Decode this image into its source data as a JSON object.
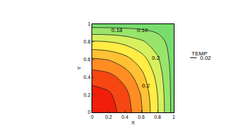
{
  "chart_data": {
    "type": "contour",
    "x_label": "X",
    "y_label": "Y",
    "x": [
      0,
      0.2,
      0.4,
      0.6,
      0.8,
      1
    ],
    "y": [
      0,
      0.2,
      0.4,
      0.6,
      0.8,
      1
    ],
    "z": [
      [
        0.29,
        0.278,
        0.244,
        0.186,
        0.104,
        0
      ],
      [
        0.278,
        0.267,
        0.234,
        0.178,
        0.1,
        0
      ],
      [
        0.244,
        0.234,
        0.205,
        0.156,
        0.088,
        0
      ],
      [
        0.186,
        0.178,
        0.156,
        0.119,
        0.067,
        0
      ],
      [
        0.104,
        0.1,
        0.088,
        0.067,
        0.038,
        0
      ],
      [
        0,
        0,
        0,
        0,
        0,
        0
      ]
    ],
    "levels": {
      "start": 0.02,
      "end": 0.3,
      "size": 0.04
    },
    "color_range": [
      0,
      0.3
    ],
    "colors": [
      "#78dc6e",
      "#c8f064",
      "#fff046",
      "#ffbe32",
      "#ff7d1e",
      "#f01e0a"
    ],
    "xlim": [
      0,
      1
    ],
    "ylim": [
      0,
      1
    ],
    "xticks": [
      0,
      0.2,
      0.4,
      0.6,
      0.8,
      {
        "value": 1,
        "label": "1"
      }
    ],
    "yticks": [
      0,
      0.2,
      0.4,
      0.6,
      0.8,
      {
        "value": 1,
        "label": "1"
      }
    ],
    "legend_title": "TEMP",
    "legend_entry": "0.02",
    "annotations": [
      {
        "text": "0.18",
        "x": 0.3,
        "y": 0.93
      },
      {
        "text": "0.10",
        "x": 0.62,
        "y": 0.93
      },
      {
        "text": "0.2",
        "x": 0.78,
        "y": 0.62
      },
      {
        "text": "0.2",
        "x": 0.66,
        "y": 0.3
      }
    ]
  }
}
